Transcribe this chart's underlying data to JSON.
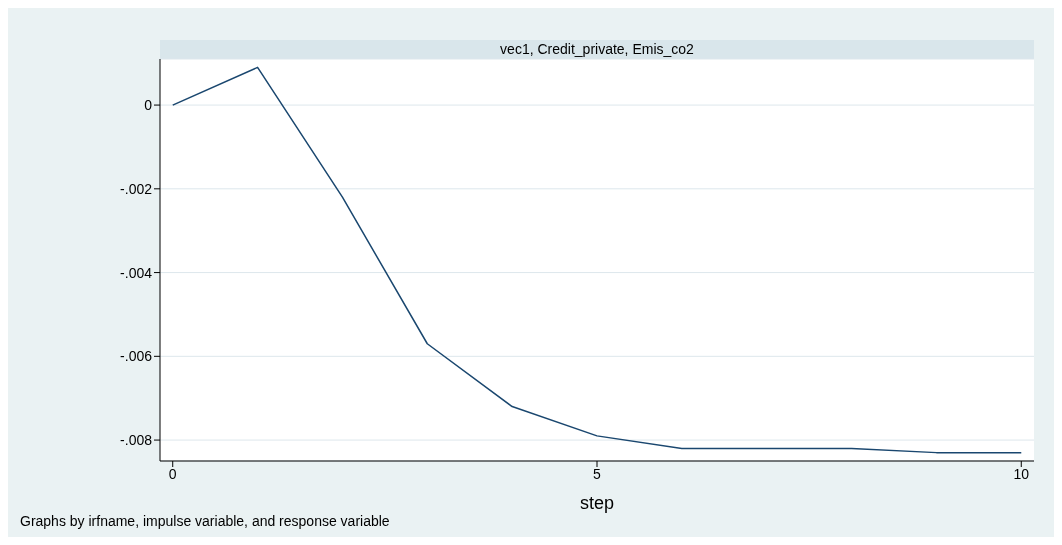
{
  "chart_data": {
    "type": "line",
    "title": "vec1, Credit_private, Emis_co2",
    "xlabel": "step",
    "annotations": [
      "Graphs by irfname, impulse variable, and response variable"
    ],
    "x": [
      0,
      1,
      2,
      3,
      4,
      5,
      6,
      7,
      8,
      9,
      10
    ],
    "series": [
      {
        "color": "#1a476f",
        "values": [
          0,
          0.0009,
          -0.0022,
          -0.0057,
          -0.0072,
          -0.0079,
          -0.0082,
          -0.0082,
          -0.0082,
          -0.0083,
          -0.0083
        ]
      }
    ],
    "xlim": [
      -0.15,
      10.15
    ],
    "xticks": [
      0,
      5,
      10
    ],
    "ylim": [
      -0.0085,
      0.0011
    ],
    "yticks": [
      {
        "value": 0,
        "label": "0"
      },
      {
        "value": -0.002,
        "label": "-.002"
      },
      {
        "value": -0.004,
        "label": "-.004"
      },
      {
        "value": -0.006,
        "label": "-.006"
      },
      {
        "value": -0.008,
        "label": "-.008"
      }
    ],
    "grid": "y",
    "line_style": "solid"
  }
}
